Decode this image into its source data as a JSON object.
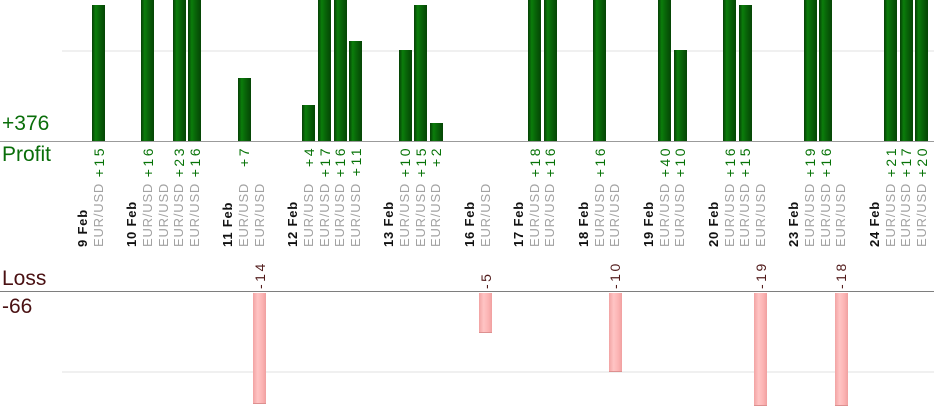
{
  "chart_data": {
    "type": "bar",
    "title": "Profit and Loss by trade, grouped by date",
    "profit_axis": {
      "total": "+376",
      "label": "Profit"
    },
    "loss_axis": {
      "total": "-66",
      "label": "Loss"
    },
    "gridlines": {
      "profit_value": 10,
      "loss_value": -10
    },
    "groups": [
      {
        "date": "9 Feb",
        "symbols": [
          "EUR/USD"
        ],
        "values": [
          15
        ]
      },
      {
        "date": "10 Feb",
        "symbols": [
          "EUR/USD",
          "EUR/USD",
          "EUR/USD",
          "EUR/USD"
        ],
        "values": [
          16,
          0,
          23,
          16
        ]
      },
      {
        "date": "11 Feb",
        "symbols": [
          "EUR/USD",
          "EUR/USD"
        ],
        "values": [
          7,
          -14
        ]
      },
      {
        "date": "12 Feb",
        "symbols": [
          "EUR/USD",
          "EUR/USD",
          "EUR/USD",
          "EUR/USD"
        ],
        "values": [
          4,
          17,
          16,
          11
        ]
      },
      {
        "date": "13 Feb",
        "symbols": [
          "EUR/USD",
          "EUR/USD",
          "EUR/USD"
        ],
        "values": [
          10,
          15,
          2
        ]
      },
      {
        "date": "16 Feb",
        "symbols": [
          "EUR/USD"
        ],
        "values": [
          -5
        ]
      },
      {
        "date": "17 Feb",
        "symbols": [
          "EUR/USD",
          "EUR/USD"
        ],
        "values": [
          18,
          16
        ]
      },
      {
        "date": "18 Feb",
        "symbols": [
          "EUR/USD",
          "EUR/USD"
        ],
        "values": [
          16,
          -10
        ]
      },
      {
        "date": "19 Feb",
        "symbols": [
          "EUR/USD",
          "EUR/USD"
        ],
        "values": [
          40,
          10
        ]
      },
      {
        "date": "20 Feb",
        "symbols": [
          "EUR/USD",
          "EUR/USD",
          "EUR/USD"
        ],
        "values": [
          16,
          15,
          -19
        ]
      },
      {
        "date": "23 Feb",
        "symbols": [
          "EUR/USD",
          "EUR/USD",
          "EUR/USD"
        ],
        "values": [
          19,
          16,
          -18
        ]
      },
      {
        "date": "24 Feb",
        "symbols": [
          "EUR/USD",
          "EUR/USD",
          "EUR/USD"
        ],
        "values": [
          21,
          17,
          20
        ]
      }
    ],
    "colors": {
      "profit_bar": "#0b7d0b",
      "loss_bar": "#ffc4c4",
      "profit_text": "#0a6e0a",
      "loss_text": "#4a1113",
      "profit_value_label": "#077307",
      "loss_value_label": "#521c1c",
      "date_label": "#111111",
      "symbol_label": "#a2a2a2",
      "profit_axis_line": "#9b9b9b",
      "loss_axis_line": "#7e7e7e",
      "gridline": "#f0f0f0"
    }
  }
}
